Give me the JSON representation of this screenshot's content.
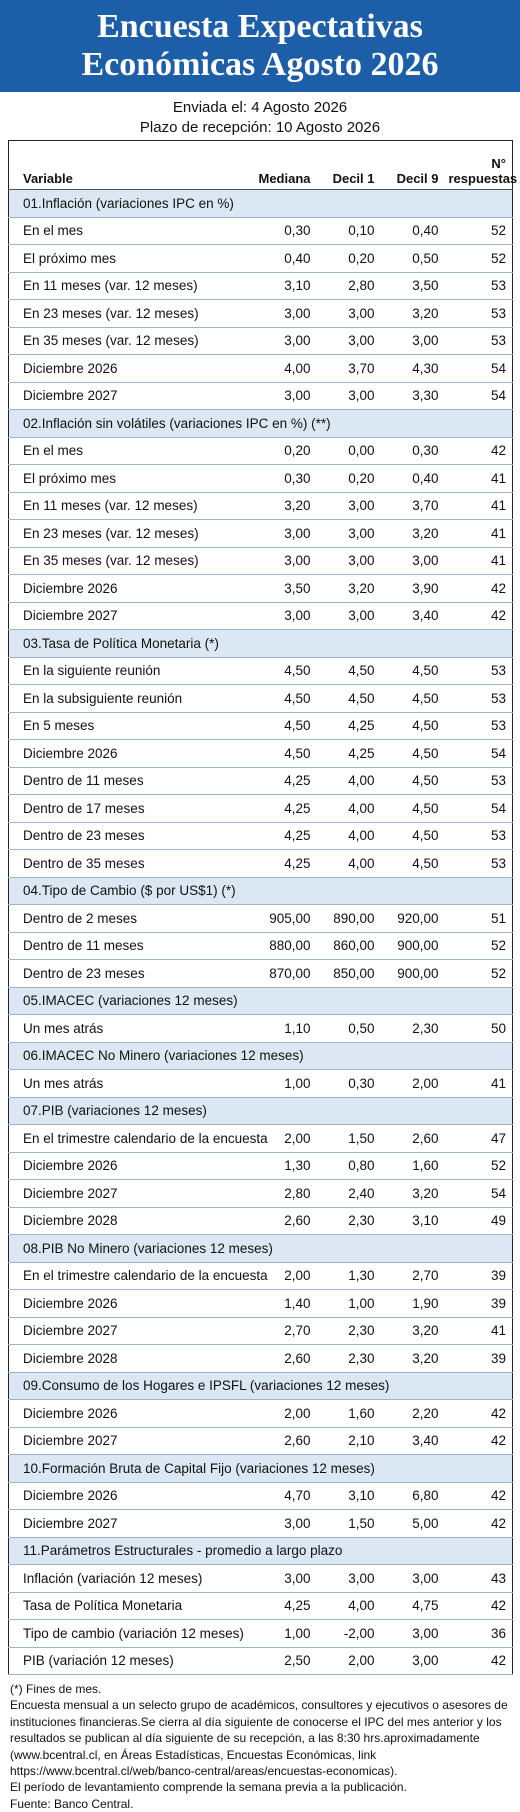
{
  "header": {
    "title": "Encuesta Expectativas Económicas Agosto 2026",
    "sent": "Enviada el: 4 Agosto 2026",
    "deadline": "Plazo de recepción: 10 Agosto 2026"
  },
  "table": {
    "columns": [
      "Variable",
      "Mediana",
      "Decil 1",
      "Decil 9",
      "N° respuestas"
    ],
    "sections": [
      {
        "title": "01.Inflación (variaciones IPC en %)",
        "rows": [
          [
            "En el mes",
            "0,30",
            "0,10",
            "0,40",
            "52"
          ],
          [
            "El próximo mes",
            "0,40",
            "0,20",
            "0,50",
            "52"
          ],
          [
            "En 11 meses (var. 12 meses)",
            "3,10",
            "2,80",
            "3,50",
            "53"
          ],
          [
            "En 23 meses (var. 12 meses)",
            "3,00",
            "3,00",
            "3,20",
            "53"
          ],
          [
            "En 35 meses (var. 12 meses)",
            "3,00",
            "3,00",
            "3,00",
            "53"
          ],
          [
            "Diciembre 2026",
            "4,00",
            "3,70",
            "4,30",
            "54"
          ],
          [
            "Diciembre 2027",
            "3,00",
            "3,00",
            "3,30",
            "54"
          ]
        ]
      },
      {
        "title": "02.Inflación sin volátiles (variaciones IPC en %) (**)",
        "rows": [
          [
            "En el mes",
            "0,20",
            "0,00",
            "0,30",
            "42"
          ],
          [
            "El próximo mes",
            "0,30",
            "0,20",
            "0,40",
            "41"
          ],
          [
            "En 11 meses (var. 12 meses)",
            "3,20",
            "3,00",
            "3,70",
            "41"
          ],
          [
            "En 23 meses (var. 12 meses)",
            "3,00",
            "3,00",
            "3,20",
            "41"
          ],
          [
            "En 35 meses (var. 12 meses)",
            "3,00",
            "3,00",
            "3,00",
            "41"
          ],
          [
            "Diciembre 2026",
            "3,50",
            "3,20",
            "3,90",
            "42"
          ],
          [
            "Diciembre 2027",
            "3,00",
            "3,00",
            "3,40",
            "42"
          ]
        ]
      },
      {
        "title": "03.Tasa de Política Monetaria  (*)",
        "rows": [
          [
            "En la siguiente reunión",
            "4,50",
            "4,50",
            "4,50",
            "53"
          ],
          [
            "En la subsiguiente reunión",
            "4,50",
            "4,50",
            "4,50",
            "53"
          ],
          [
            "En 5 meses",
            "4,50",
            "4,25",
            "4,50",
            "53"
          ],
          [
            "Diciembre 2026",
            "4,50",
            "4,25",
            "4,50",
            "54"
          ],
          [
            "Dentro de 11 meses",
            "4,25",
            "4,00",
            "4,50",
            "53"
          ],
          [
            "Dentro de 17 meses",
            "4,25",
            "4,00",
            "4,50",
            "54"
          ],
          [
            "Dentro de 23 meses",
            "4,25",
            "4,00",
            "4,50",
            "53"
          ],
          [
            "Dentro de 35 meses",
            "4,25",
            "4,00",
            "4,50",
            "53"
          ]
        ]
      },
      {
        "title": "04.Tipo de Cambio  ($ por US$1) (*)",
        "rows": [
          [
            "Dentro de 2 meses",
            "905,00",
            "890,00",
            "920,00",
            "51"
          ],
          [
            "Dentro de 11 meses",
            "880,00",
            "860,00",
            "900,00",
            "52"
          ],
          [
            "Dentro de 23 meses",
            "870,00",
            "850,00",
            "900,00",
            "52"
          ]
        ]
      },
      {
        "title": "05.IMACEC  (variaciones 12 meses)",
        "rows": [
          [
            "Un mes atrás",
            "1,10",
            "0,50",
            "2,30",
            "50"
          ]
        ]
      },
      {
        "title": "06.IMACEC No Minero (variaciones 12 meses)",
        "rows": [
          [
            "Un mes atrás",
            "1,00",
            "0,30",
            "2,00",
            "41"
          ]
        ]
      },
      {
        "title": "07.PIB  (variaciones 12 meses)",
        "rows": [
          [
            "En el trimestre calendario de la encuesta",
            "2,00",
            "1,50",
            "2,60",
            "47"
          ],
          [
            "Diciembre 2026",
            "1,30",
            "0,80",
            "1,60",
            "52"
          ],
          [
            "Diciembre 2027",
            "2,80",
            "2,40",
            "3,20",
            "54"
          ],
          [
            "Diciembre 2028",
            "2,60",
            "2,30",
            "3,10",
            "49"
          ]
        ]
      },
      {
        "title": "08.PIB No Minero (variaciones 12 meses)",
        "rows": [
          [
            "En el trimestre calendario de la encuesta",
            "2,00",
            "1,30",
            "2,70",
            "39"
          ],
          [
            "Diciembre 2026",
            "1,40",
            "1,00",
            "1,90",
            "39"
          ],
          [
            "Diciembre 2027",
            "2,70",
            "2,30",
            "3,20",
            "41"
          ],
          [
            "Diciembre 2028",
            "2,60",
            "2,30",
            "3,20",
            "39"
          ]
        ]
      },
      {
        "title": "09.Consumo de los Hogares e IPSFL  (variaciones 12 meses)",
        "rows": [
          [
            "Diciembre 2026",
            "2,00",
            "1,60",
            "2,20",
            "42"
          ],
          [
            "Diciembre 2027",
            "2,60",
            "2,10",
            "3,40",
            "42"
          ]
        ]
      },
      {
        "title": "10.Formación Bruta de Capital Fijo  (variaciones 12 meses)",
        "rows": [
          [
            "Diciembre 2026",
            "4,70",
            "3,10",
            "6,80",
            "42"
          ],
          [
            "Diciembre 2027",
            "3,00",
            "1,50",
            "5,00",
            "42"
          ]
        ]
      },
      {
        "title": "11.Parámetros Estructurales - promedio a largo plazo",
        "rows": [
          [
            "Inflación (variación 12 meses)",
            "3,00",
            "3,00",
            "3,00",
            "43"
          ],
          [
            "Tasa de Política Monetaria",
            "4,25",
            "4,00",
            "4,75",
            "42"
          ],
          [
            "Tipo de cambio (variación 12 meses)",
            "1,00",
            "-2,00",
            "3,00",
            "36"
          ],
          [
            "PIB (variación 12 meses)",
            "2,50",
            "2,00",
            "3,00",
            "42"
          ]
        ]
      }
    ]
  },
  "footer": {
    "notes": [
      "(*) Fines de mes.",
      "Encuesta mensual a un selecto grupo de académicos, consultores y ejecutivos o asesores de instituciones financieras.Se cierra al día siguiente de conocerse el IPC del mes anterior y los resultados se publican al día siguiente de su recepción, a las 8:30 hrs.aproximadamente (www.bcentral.cl, en Áreas Estadísticas, Encuestas Económicas, link https://www.bcentral.cl/web/banco-central/areas/encuestas-economicas).",
      "El período de levantamiento comprende la semana previa a la publicación.",
      "Fuente: Banco Central."
    ]
  }
}
